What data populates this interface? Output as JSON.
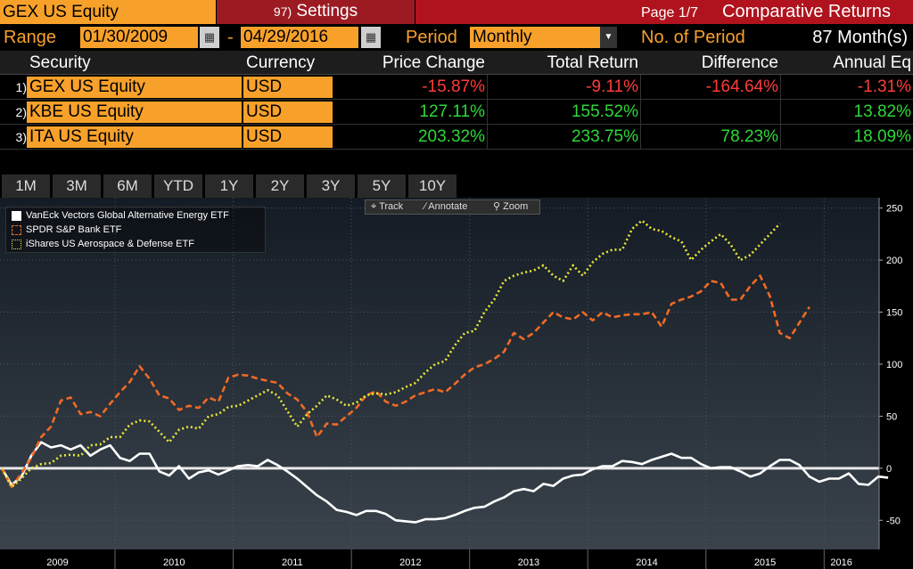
{
  "header": {
    "ticker": "GEX US Equity",
    "settings_num": "97)",
    "settings_label": "Settings",
    "page": "Page 1/7",
    "title": "Comparative Returns"
  },
  "range": {
    "range_label": "Range",
    "start_date": "01/30/2009",
    "dash": "-",
    "end_date": "04/29/2016",
    "period_label": "Period",
    "period_value": "Monthly",
    "nperiod_label": "No. of Period",
    "nperiod_value": "87 Month(s)"
  },
  "table": {
    "headers": [
      "Security",
      "Currency",
      "Price Change",
      "Total Return",
      "Difference",
      "Annual Eq"
    ],
    "rows": [
      {
        "num": "1)",
        "security": "GEX US Equity",
        "currency": "USD",
        "price_change": "-15.87%",
        "total_return": "-9.11%",
        "difference": "-164.64%",
        "annual": "-1.31%"
      },
      {
        "num": "2)",
        "security": "KBE US Equity",
        "currency": "USD",
        "price_change": "127.11%",
        "total_return": "155.52%",
        "difference": "",
        "annual": "13.82%"
      },
      {
        "num": "3)",
        "security": "ITA US Equity",
        "currency": "USD",
        "price_change": "203.32%",
        "total_return": "233.75%",
        "difference": "78.23%",
        "annual": "18.09%"
      }
    ]
  },
  "periods": [
    "1M",
    "3M",
    "6M",
    "YTD",
    "1Y",
    "2Y",
    "3Y",
    "5Y",
    "10Y"
  ],
  "toolbar": {
    "track": "Track",
    "annotate": "Annotate",
    "zoom": "Zoom"
  },
  "colors": {
    "amber": "#f7a12b",
    "white_series": "#ffffff",
    "orange_series": "#f06a24",
    "yellow_series": "#e8e83a",
    "neg": "#ff3b3b",
    "pos": "#2ed838"
  },
  "chart_data": {
    "type": "line",
    "x_labels": [
      "2009",
      "2010",
      "2011",
      "2012",
      "2013",
      "2014",
      "2015",
      "2016"
    ],
    "y_ticks": [
      250,
      200,
      150,
      100,
      50,
      0,
      -50
    ],
    "ylim": [
      -78,
      260
    ],
    "grid": true,
    "series": [
      {
        "name": "VanEck Vectors Global Alternative Energy ETF",
        "color": "#ffffff",
        "style": "solid",
        "values": [
          0,
          -16,
          -8,
          12,
          25,
          20,
          22,
          18,
          22,
          12,
          18,
          22,
          10,
          7,
          14,
          14,
          -3,
          -7,
          2,
          -10,
          -4,
          -2,
          -6,
          -2,
          2,
          3,
          2,
          8,
          3,
          -3,
          -10,
          -18,
          -26,
          -32,
          -40,
          -42,
          -45,
          -41,
          -41,
          -44,
          -50,
          -51,
          -52,
          -49,
          -49,
          -48,
          -45,
          -41,
          -38,
          -37,
          -32,
          -28,
          -22,
          -20,
          -22,
          -15,
          -17,
          -10,
          -7,
          -6,
          -1,
          2,
          2,
          7,
          6,
          4,
          8,
          11,
          14,
          10,
          10,
          4,
          0,
          1,
          1,
          -3,
          -8,
          -5,
          2,
          8,
          8,
          3,
          -8,
          -13,
          -10,
          -10,
          -5,
          -15,
          -16,
          -8,
          -9
        ]
      },
      {
        "name": "SPDR S&P Bank ETF",
        "color": "#f06a24",
        "style": "dash",
        "values": [
          0,
          -18,
          -5,
          10,
          30,
          40,
          65,
          68,
          52,
          54,
          50,
          62,
          73,
          83,
          98,
          86,
          70,
          67,
          56,
          60,
          58,
          68,
          64,
          87,
          90,
          89,
          86,
          84,
          82,
          72,
          66,
          54,
          30,
          43,
          42,
          50,
          58,
          70,
          74,
          64,
          60,
          64,
          70,
          73,
          76,
          73,
          81,
          90,
          97,
          100,
          105,
          112,
          130,
          124,
          130,
          140,
          150,
          145,
          143,
          150,
          142,
          150,
          145,
          147,
          148,
          148,
          150,
          136,
          158,
          162,
          165,
          170,
          180,
          178,
          162,
          162,
          175,
          185,
          165,
          130,
          125,
          140,
          155
        ]
      },
      {
        "name": "iShares US Aerospace & Defense ETF",
        "color": "#e8e83a",
        "style": "dot",
        "values": [
          0,
          -18,
          -10,
          0,
          4,
          5,
          12,
          13,
          12,
          22,
          23,
          30,
          30,
          42,
          46,
          45,
          35,
          25,
          37,
          40,
          38,
          50,
          52,
          59,
          60,
          65,
          70,
          75,
          70,
          55,
          40,
          52,
          60,
          70,
          66,
          60,
          63,
          70,
          72,
          71,
          73,
          78,
          82,
          92,
          100,
          103,
          118,
          130,
          132,
          150,
          162,
          180,
          185,
          188,
          190,
          195,
          185,
          180,
          195,
          185,
          198,
          206,
          210,
          210,
          230,
          238,
          230,
          228,
          222,
          218,
          200,
          210,
          218,
          225,
          215,
          200,
          205,
          215,
          225,
          235
        ]
      }
    ]
  }
}
